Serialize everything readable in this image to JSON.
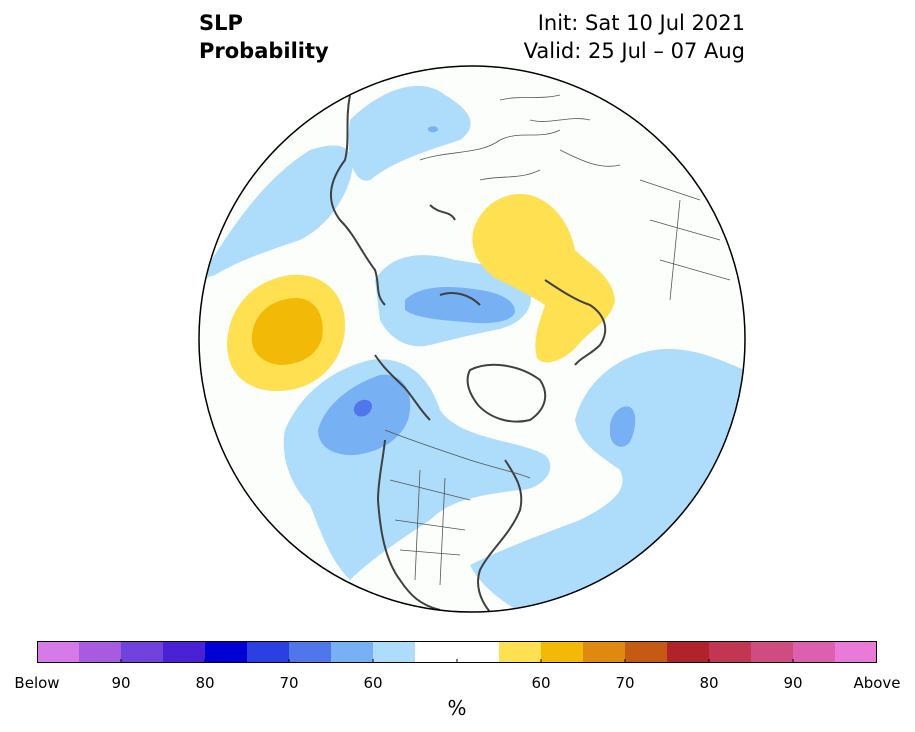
{
  "title": {
    "line1": "SLP",
    "line2": "Probability"
  },
  "init": {
    "label": "Init: Sat 10 Jul 2021"
  },
  "valid": {
    "label": "Valid: 25 Jul – 07 Aug"
  },
  "colorbar": {
    "unit": "%",
    "colors": [
      "#d67ae8",
      "#a65be0",
      "#7043dd",
      "#4a22d6",
      "#0000d4",
      "#2c3fe0",
      "#5077ea",
      "#78b1f3",
      "#aedcfb",
      "#ffffff",
      "#ffffff",
      "#ffe050",
      "#f2b907",
      "#de8a10",
      "#c55a15",
      "#b0232a",
      "#c23652",
      "#ce4c80",
      "#dc60ad",
      "#ea7ad8"
    ],
    "labels": [
      "Below",
      "90",
      "80",
      "70",
      "60",
      "60",
      "70",
      "80",
      "90",
      "Above"
    ]
  },
  "map": {
    "projection": "north-polar-stereographic",
    "regions": [
      {
        "name": "north-pacific-above-normal",
        "category": "above",
        "level": "60-70"
      },
      {
        "name": "eurasia-above-normal",
        "category": "above",
        "level": "55-60"
      },
      {
        "name": "gulf-of-alaska-below-normal",
        "category": "below",
        "level": "65-75"
      },
      {
        "name": "siberian-arctic-below-normal",
        "category": "below",
        "level": "60-65"
      },
      {
        "name": "north-atlantic-below-normal",
        "category": "below",
        "level": "60-65"
      }
    ]
  }
}
